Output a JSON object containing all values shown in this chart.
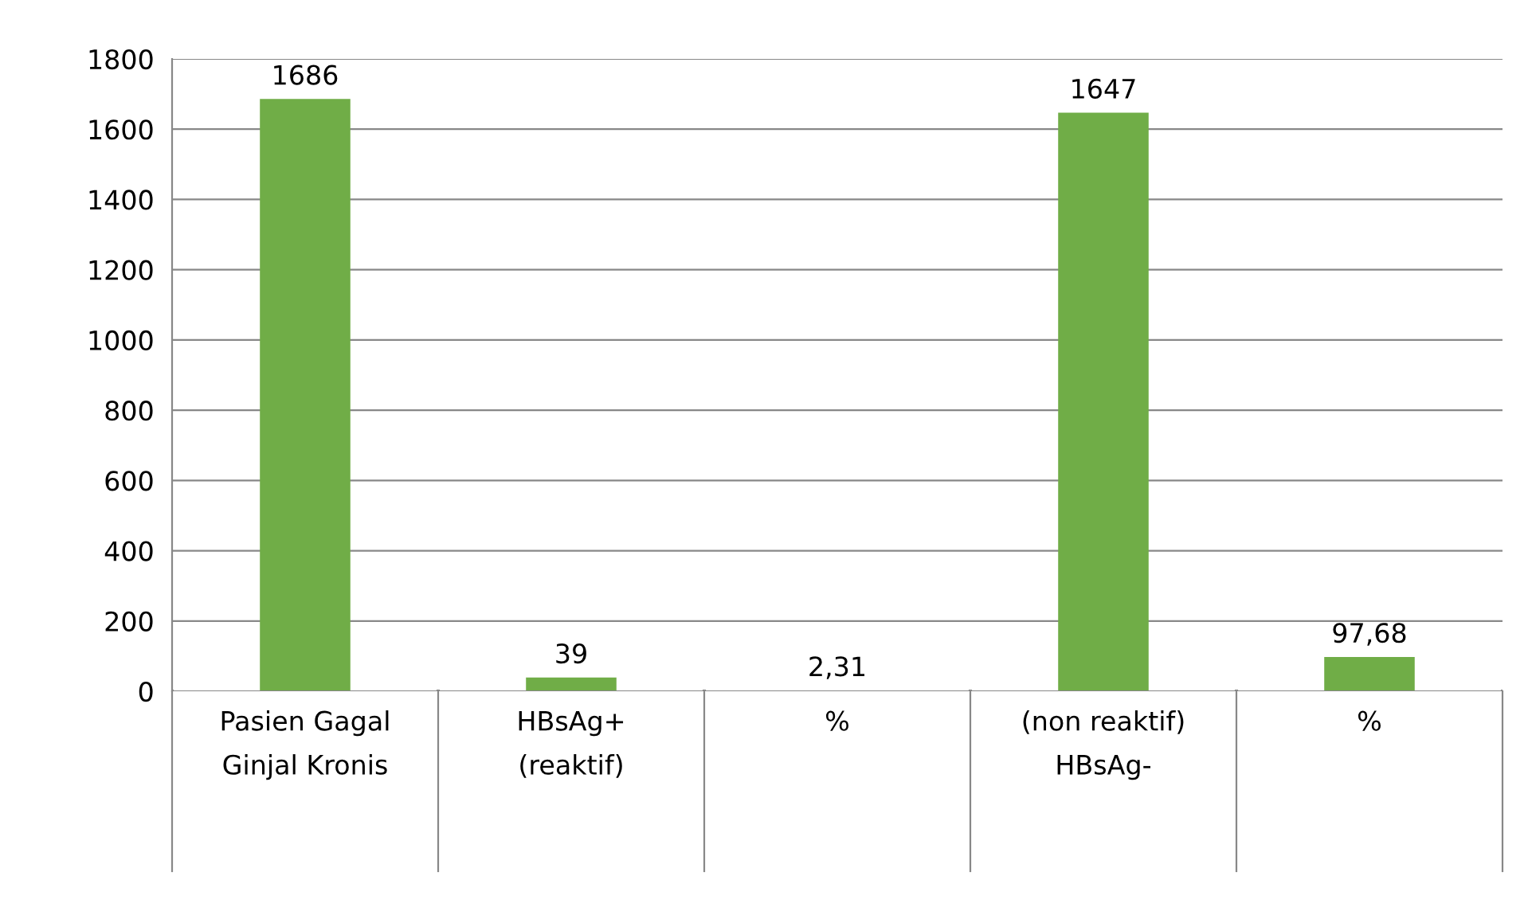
{
  "chart_data": {
    "type": "bar",
    "categories": [
      "Pasien Gagal\nGinjal Kronis",
      "HBsAg+\n(reaktif)",
      "%",
      "(non reaktif)\nHBsAg-",
      "%"
    ],
    "values": [
      1686,
      39,
      2.31,
      1647,
      97.68
    ],
    "value_labels": [
      "1686",
      "39",
      "2,31",
      "1647",
      "97,68"
    ],
    "color": "#70ad47",
    "ylim": [
      0,
      1800
    ],
    "yticks": [
      0,
      200,
      400,
      600,
      800,
      1000,
      1200,
      1400,
      1600,
      1800
    ],
    "grid": "y",
    "legend": false
  }
}
